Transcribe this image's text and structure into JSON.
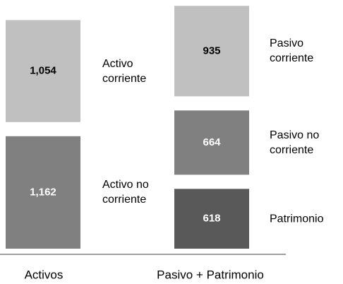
{
  "chart_data": {
    "type": "bar",
    "stacked": true,
    "categories": [
      "Activos",
      "Pasivo + Patrimonio"
    ],
    "series": [
      {
        "name": "Activo corriente",
        "color": "#c0c0c0",
        "label_color": "#000000",
        "values": [
          1054,
          null
        ],
        "value_labels": [
          "1,054",
          null
        ]
      },
      {
        "name": "Activo no corriente",
        "color": "#808080",
        "label_color": "#ffffff",
        "values": [
          1162,
          null
        ],
        "value_labels": [
          "1,162",
          null
        ]
      },
      {
        "name": "Pasivo corriente",
        "color": "#c0c0c0",
        "label_color": "#000000",
        "values": [
          null,
          935
        ],
        "value_labels": [
          null,
          "935"
        ]
      },
      {
        "name": "Pasivo no corriente",
        "color": "#808080",
        "label_color": "#ffffff",
        "values": [
          null,
          664
        ],
        "value_labels": [
          null,
          "664"
        ]
      },
      {
        "name": "Patrimonio",
        "color": "#595959",
        "label_color": "#ffffff",
        "values": [
          null,
          618
        ],
        "value_labels": [
          null,
          "618"
        ]
      }
    ]
  }
}
